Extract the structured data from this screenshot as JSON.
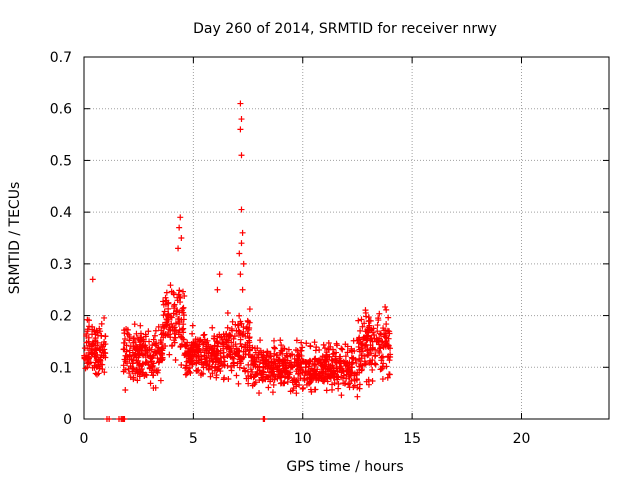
{
  "chart_data": {
    "type": "scatter",
    "title": "Day 260 of 2014, SRMTID for receiver nrwy",
    "xlabel": "GPS time / hours",
    "ylabel": "SRMTID / TECUs",
    "xlim": [
      0,
      24
    ],
    "ylim": [
      0,
      0.7
    ],
    "xticks": [
      0,
      5,
      10,
      15,
      20
    ],
    "yticks": [
      0,
      0.1,
      0.2,
      0.3,
      0.4,
      0.5,
      0.6,
      0.7
    ],
    "ytick_labels": [
      "0",
      "0.1",
      "0.2",
      "0.3",
      "0.4",
      "0.5",
      "0.6",
      "0.7"
    ],
    "grid": true,
    "marker": "+",
    "series_color": "#ff0000",
    "zero_points_x": [
      1.05,
      1.15,
      1.6,
      1.7,
      1.75,
      1.8,
      1.85,
      8.2,
      8.25
    ],
    "peak_points": [
      {
        "x": 7.15,
        "y": 0.61
      },
      {
        "x": 7.2,
        "y": 0.58
      },
      {
        "x": 7.15,
        "y": 0.56
      },
      {
        "x": 7.2,
        "y": 0.51
      },
      {
        "x": 7.2,
        "y": 0.405
      },
      {
        "x": 7.25,
        "y": 0.36
      },
      {
        "x": 7.2,
        "y": 0.34
      },
      {
        "x": 7.1,
        "y": 0.32
      },
      {
        "x": 7.3,
        "y": 0.3
      },
      {
        "x": 7.15,
        "y": 0.28
      },
      {
        "x": 7.25,
        "y": 0.25
      },
      {
        "x": 4.4,
        "y": 0.39
      },
      {
        "x": 4.35,
        "y": 0.37
      },
      {
        "x": 4.45,
        "y": 0.35
      },
      {
        "x": 4.3,
        "y": 0.33
      },
      {
        "x": 6.2,
        "y": 0.28
      },
      {
        "x": 0.4,
        "y": 0.27
      },
      {
        "x": 6.1,
        "y": 0.25
      }
    ],
    "envelope": [
      {
        "x0": 0.0,
        "x1": 1.0,
        "lo": 0.06,
        "hi": 0.21
      },
      {
        "x0": 1.8,
        "x1": 3.6,
        "lo": 0.04,
        "hi": 0.2
      },
      {
        "x0": 3.6,
        "x1": 4.6,
        "lo": 0.08,
        "hi": 0.29
      },
      {
        "x0": 4.6,
        "x1": 6.5,
        "lo": 0.06,
        "hi": 0.19
      },
      {
        "x0": 6.5,
        "x1": 7.6,
        "lo": 0.05,
        "hi": 0.22
      },
      {
        "x0": 7.6,
        "x1": 9.5,
        "lo": 0.04,
        "hi": 0.16
      },
      {
        "x0": 9.5,
        "x1": 12.5,
        "lo": 0.03,
        "hi": 0.16
      },
      {
        "x0": 12.5,
        "x1": 14.0,
        "lo": 0.04,
        "hi": 0.24
      }
    ]
  }
}
